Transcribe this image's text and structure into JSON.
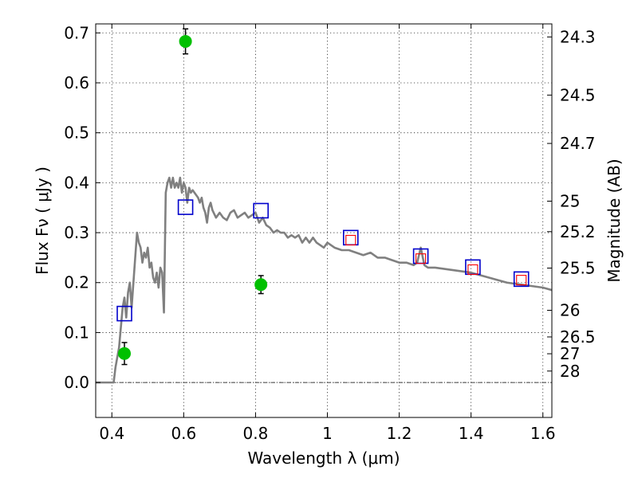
{
  "chart_data": {
    "type": "scatter",
    "title": "",
    "xlabel": "Wavelength  λ (μm)",
    "ylabel": "Flux  Fν  ( μJy )",
    "y2label": "Magnitude (AB)",
    "xlim": [
      0.355,
      1.625
    ],
    "ylim": [
      -0.07,
      0.718
    ],
    "grid": true,
    "legend": "none",
    "x_ticks": [
      {
        "value": 0.4,
        "label": "0.4"
      },
      {
        "value": 0.6,
        "label": "0.6"
      },
      {
        "value": 0.8,
        "label": "0.8"
      },
      {
        "value": 1.0,
        "label": "1"
      },
      {
        "value": 1.2,
        "label": "1.2"
      },
      {
        "value": 1.4,
        "label": "1.4"
      },
      {
        "value": 1.6,
        "label": "1.6"
      }
    ],
    "y_ticks": [
      {
        "value": 0.0,
        "label": "0.0"
      },
      {
        "value": 0.1,
        "label": "0.1"
      },
      {
        "value": 0.2,
        "label": "0.2"
      },
      {
        "value": 0.3,
        "label": "0.3"
      },
      {
        "value": 0.4,
        "label": "0.4"
      },
      {
        "value": 0.5,
        "label": "0.5"
      },
      {
        "value": 0.6,
        "label": "0.6"
      },
      {
        "value": 0.7,
        "label": "0.7"
      }
    ],
    "y2_ticks": [
      {
        "value": 24.3,
        "label": "24.3"
      },
      {
        "value": 24.5,
        "label": "24.5"
      },
      {
        "value": 24.7,
        "label": "24.7"
      },
      {
        "value": 25.0,
        "label": "25"
      },
      {
        "value": 25.2,
        "label": "25.2"
      },
      {
        "value": 25.5,
        "label": "25.5"
      },
      {
        "value": 26.0,
        "label": "26"
      },
      {
        "value": 26.5,
        "label": "26.5"
      },
      {
        "value": 27.0,
        "label": "27"
      },
      {
        "value": 28.0,
        "label": "28"
      }
    ],
    "series": [
      {
        "kind": "line",
        "color": "#808080",
        "x": [
          0.355,
          0.405,
          0.41,
          0.415,
          0.42,
          0.425,
          0.43,
          0.435,
          0.44,
          0.445,
          0.45,
          0.455,
          0.46,
          0.465,
          0.47,
          0.475,
          0.48,
          0.485,
          0.49,
          0.495,
          0.5,
          0.505,
          0.51,
          0.515,
          0.52,
          0.525,
          0.53,
          0.535,
          0.54,
          0.545,
          0.55,
          0.555,
          0.56,
          0.565,
          0.57,
          0.575,
          0.58,
          0.585,
          0.59,
          0.595,
          0.6,
          0.605,
          0.61,
          0.615,
          0.62,
          0.625,
          0.63,
          0.635,
          0.64,
          0.645,
          0.65,
          0.655,
          0.66,
          0.665,
          0.67,
          0.675,
          0.68,
          0.69,
          0.7,
          0.71,
          0.72,
          0.73,
          0.74,
          0.75,
          0.76,
          0.77,
          0.78,
          0.79,
          0.8,
          0.81,
          0.82,
          0.83,
          0.84,
          0.85,
          0.86,
          0.87,
          0.88,
          0.89,
          0.9,
          0.91,
          0.92,
          0.93,
          0.94,
          0.95,
          0.96,
          0.97,
          0.98,
          0.99,
          1.0,
          1.02,
          1.04,
          1.06,
          1.08,
          1.1,
          1.12,
          1.14,
          1.16,
          1.18,
          1.2,
          1.22,
          1.24,
          1.25,
          1.26,
          1.27,
          1.28,
          1.3,
          1.35,
          1.4,
          1.45,
          1.5,
          1.55,
          1.6,
          1.625
        ],
        "y": [
          0.0,
          0.0,
          0.03,
          0.05,
          0.07,
          0.11,
          0.15,
          0.17,
          0.13,
          0.18,
          0.2,
          0.15,
          0.2,
          0.25,
          0.3,
          0.28,
          0.27,
          0.24,
          0.26,
          0.25,
          0.27,
          0.23,
          0.24,
          0.21,
          0.2,
          0.22,
          0.19,
          0.23,
          0.22,
          0.14,
          0.38,
          0.4,
          0.41,
          0.39,
          0.41,
          0.39,
          0.4,
          0.39,
          0.41,
          0.38,
          0.4,
          0.39,
          0.36,
          0.39,
          0.38,
          0.385,
          0.38,
          0.375,
          0.37,
          0.36,
          0.37,
          0.35,
          0.34,
          0.32,
          0.35,
          0.36,
          0.345,
          0.33,
          0.34,
          0.33,
          0.325,
          0.34,
          0.345,
          0.33,
          0.335,
          0.34,
          0.33,
          0.335,
          0.34,
          0.32,
          0.33,
          0.315,
          0.31,
          0.3,
          0.305,
          0.3,
          0.3,
          0.29,
          0.295,
          0.29,
          0.295,
          0.28,
          0.29,
          0.28,
          0.29,
          0.28,
          0.275,
          0.27,
          0.28,
          0.27,
          0.265,
          0.265,
          0.26,
          0.255,
          0.26,
          0.25,
          0.25,
          0.245,
          0.24,
          0.24,
          0.235,
          0.24,
          0.27,
          0.235,
          0.23,
          0.23,
          0.225,
          0.22,
          0.21,
          0.2,
          0.195,
          0.19,
          0.185
        ]
      },
      {
        "kind": "points",
        "marker": "circle",
        "color": "#00c000",
        "x": [
          0.435,
          0.605,
          0.815
        ],
        "y": [
          0.058,
          0.683,
          0.196
        ],
        "yerr": [
          0.022,
          0.025,
          0.018
        ]
      },
      {
        "kind": "points",
        "marker": "square",
        "color": "#0000cc",
        "x": [
          0.435,
          0.605,
          0.815,
          1.065,
          1.26,
          1.405,
          1.54
        ],
        "y": [
          0.138,
          0.351,
          0.344,
          0.29,
          0.253,
          0.231,
          0.207
        ]
      },
      {
        "kind": "points",
        "marker": "small-square",
        "color": "#ff0000",
        "x": [
          1.065,
          1.26,
          1.405,
          1.54
        ],
        "y": [
          0.285,
          0.248,
          0.226,
          0.205
        ]
      }
    ]
  }
}
